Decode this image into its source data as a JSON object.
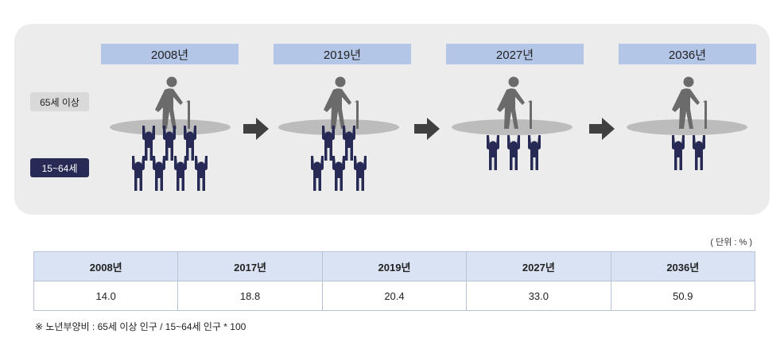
{
  "legend": {
    "senior": "65세 이상",
    "working": "15~64세"
  },
  "stages": [
    {
      "year": "2008년",
      "workers": 7
    },
    {
      "year": "2019년",
      "workers": 5
    },
    {
      "year": "2027년",
      "workers": 3
    },
    {
      "year": "2036년",
      "workers": 2
    }
  ],
  "table": {
    "unit": "( 단위 : % )",
    "headers": [
      "2008년",
      "2017년",
      "2019년",
      "2027년",
      "2036년"
    ],
    "values": [
      "14.0",
      "18.8",
      "20.4",
      "33.0",
      "50.9"
    ]
  },
  "note": "※ 노년부양비 : 65세 이상 인구 / 15~64세 인구 * 100",
  "colors": {
    "panel": "#ececec",
    "year_box": "#b4c6e7",
    "worker": "#262a55",
    "senior": "#6b6b6b",
    "arrow": "#404040",
    "table_header": "#dae3f3"
  },
  "icons": {
    "senior": "elderly-person-icon",
    "worker": "raised-arms-person-icon",
    "transition": "right-arrow-icon"
  }
}
